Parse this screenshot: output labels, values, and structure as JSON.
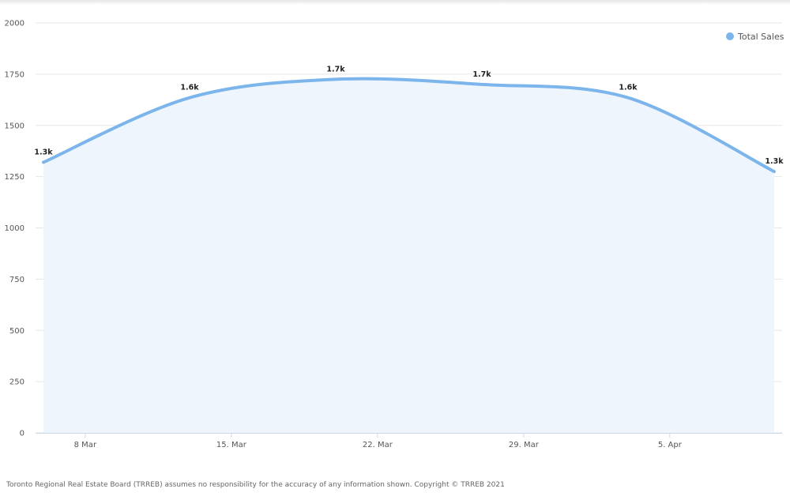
{
  "chart_data": {
    "type": "area",
    "x": [
      "2021-03-06",
      "2021-03-13",
      "2021-03-20",
      "2021-03-27",
      "2021-04-03",
      "2021-04-10"
    ],
    "x_tick_labels": [
      "8 Mar",
      "15. Mar",
      "22. Mar",
      "29. Mar",
      "5. Apr"
    ],
    "x_tick_dates": [
      "2021-03-08",
      "2021-03-15",
      "2021-03-22",
      "2021-03-29",
      "2021-04-05"
    ],
    "series": [
      {
        "name": "Total Sales",
        "values": [
          1320,
          1635,
          1725,
          1700,
          1635,
          1275
        ],
        "data_labels": [
          "1.3k",
          "1.6k",
          "1.7k",
          "1.7k",
          "1.6k",
          "1.3k"
        ]
      }
    ],
    "y_ticks": [
      0,
      250,
      500,
      750,
      1000,
      1250,
      1500,
      1750,
      2000
    ],
    "ylim": [
      0,
      2000
    ],
    "grid": true,
    "legend_position": "top-right",
    "colors": {
      "line": "#7cb5ec",
      "fill": "#eff5fc",
      "grid": "#e6e6e6"
    }
  },
  "footer": "Toronto Regional Real Estate Board (TRREB) assumes no responsibility for the accuracy of any information shown. Copyright © TRREB 2021"
}
